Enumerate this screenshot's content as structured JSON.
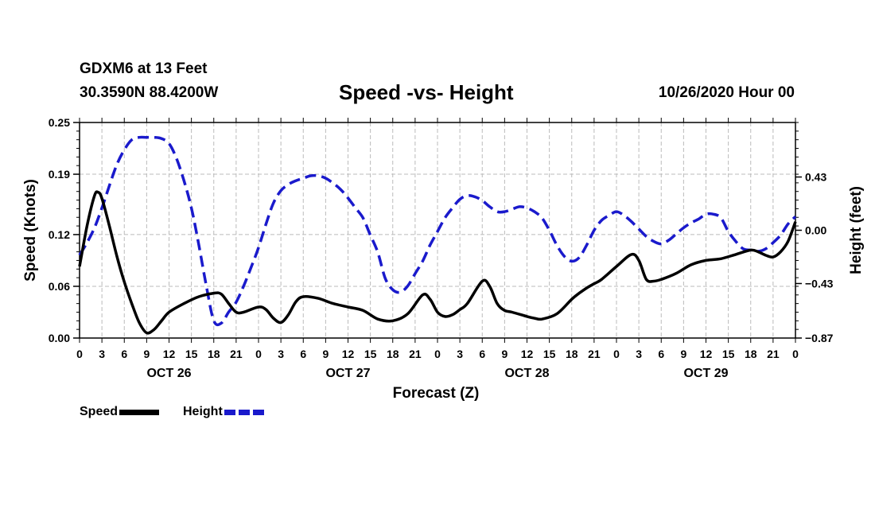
{
  "header": {
    "station": "GDXM6 at 13 Feet",
    "coords": "30.3590N 88.4200W",
    "title": "Speed -vs- Height",
    "datetime": "10/26/2020 Hour 00"
  },
  "legend": {
    "speed_label": "Speed",
    "height_label": "Height"
  },
  "colors": {
    "speed": "#000000",
    "height": "#1a1acc",
    "grid": "#bbbbbb"
  },
  "chart_data": {
    "type": "line",
    "title": "Speed -vs- Height",
    "xlabel": "Forecast (Z)",
    "ylabel": "Speed (Knots)",
    "y2label": "Height (feet)",
    "xlim": [
      0,
      96
    ],
    "ylim": [
      0,
      0.25
    ],
    "y2lim": [
      -0.87,
      0.87
    ],
    "x_ticks": [
      0,
      3,
      6,
      9,
      12,
      15,
      18,
      21,
      24,
      27,
      30,
      33,
      36,
      39,
      42,
      45,
      48,
      51,
      54,
      57,
      60,
      63,
      66,
      69,
      72,
      75,
      78,
      81,
      84,
      87,
      90,
      93,
      96
    ],
    "x_tick_labels": [
      "0",
      "3",
      "6",
      "9",
      "12",
      "15",
      "18",
      "21",
      "0",
      "3",
      "6",
      "9",
      "12",
      "15",
      "18",
      "21",
      "0",
      "3",
      "6",
      "9",
      "12",
      "15",
      "18",
      "21",
      "0",
      "3",
      "6",
      "9",
      "12",
      "15",
      "18",
      "21",
      "0"
    ],
    "day_labels": [
      {
        "x": 12,
        "label": "OCT 26"
      },
      {
        "x": 36,
        "label": "OCT 27"
      },
      {
        "x": 60,
        "label": "OCT 28"
      },
      {
        "x": 84,
        "label": "OCT 29"
      }
    ],
    "y_ticks": [
      0.0,
      0.06,
      0.12,
      0.19,
      0.25
    ],
    "y_tick_labels": [
      "0.00",
      "0.06",
      "0.12",
      "0.19",
      "0.25"
    ],
    "y2_ticks": [
      -0.87,
      -0.43,
      0.0,
      0.43
    ],
    "y2_tick_labels": [
      "−0.87",
      "−0.43",
      "0.00",
      "0.43"
    ],
    "series": [
      {
        "name": "Speed",
        "axis": "left",
        "style": "solid",
        "x": [
          0,
          1,
          2,
          2.5,
          3,
          4,
          5,
          6,
          7,
          8,
          9,
          10,
          11,
          12,
          14,
          16,
          18,
          19,
          20,
          21,
          22,
          24,
          25,
          26,
          27,
          28,
          29,
          30,
          32,
          34,
          36,
          38,
          40,
          42,
          44,
          46,
          47,
          48,
          49,
          50,
          51,
          52,
          54,
          55,
          56,
          57,
          58,
          60,
          61,
          62,
          64,
          66,
          67,
          68,
          69,
          70,
          72,
          74,
          75,
          76,
          77,
          78,
          80,
          82,
          84,
          86,
          88,
          90,
          91,
          92,
          93,
          94,
          95,
          96
        ],
        "values": [
          0.083,
          0.13,
          0.165,
          0.169,
          0.162,
          0.13,
          0.095,
          0.065,
          0.04,
          0.018,
          0.006,
          0.01,
          0.02,
          0.03,
          0.04,
          0.048,
          0.052,
          0.051,
          0.04,
          0.03,
          0.03,
          0.036,
          0.033,
          0.023,
          0.018,
          0.027,
          0.042,
          0.048,
          0.046,
          0.04,
          0.036,
          0.032,
          0.022,
          0.02,
          0.028,
          0.05,
          0.045,
          0.03,
          0.025,
          0.027,
          0.033,
          0.04,
          0.066,
          0.06,
          0.04,
          0.032,
          0.03,
          0.025,
          0.023,
          0.022,
          0.028,
          0.045,
          0.052,
          0.058,
          0.063,
          0.068,
          0.083,
          0.097,
          0.09,
          0.068,
          0.066,
          0.068,
          0.075,
          0.085,
          0.09,
          0.092,
          0.097,
          0.102,
          0.1,
          0.096,
          0.094,
          0.1,
          0.112,
          0.135
        ]
      },
      {
        "name": "Height",
        "axis": "right",
        "style": "dashed",
        "x": [
          0,
          1,
          2,
          3,
          4,
          5,
          6,
          7,
          8,
          9,
          10,
          11,
          12,
          13,
          14,
          15,
          16,
          17,
          18,
          19,
          20,
          21,
          22,
          23,
          24,
          25,
          26,
          27,
          28,
          29,
          30,
          31,
          32,
          33,
          34,
          35,
          36,
          37,
          38,
          39,
          40,
          41,
          42,
          43,
          44,
          45,
          46,
          47,
          48,
          49,
          50,
          51,
          52,
          53,
          54,
          55,
          56,
          57,
          58,
          59,
          60,
          61,
          62,
          63,
          64,
          65,
          66,
          67,
          68,
          69,
          70,
          71,
          72,
          73,
          74,
          75,
          76,
          77,
          78,
          79,
          80,
          81,
          82,
          83,
          84,
          85,
          86,
          87,
          88,
          89,
          90,
          91,
          92,
          93,
          94,
          95,
          96
        ],
        "values": [
          -0.2,
          -0.1,
          0.02,
          0.18,
          0.36,
          0.53,
          0.65,
          0.73,
          0.75,
          0.75,
          0.75,
          0.74,
          0.7,
          0.58,
          0.4,
          0.18,
          -0.12,
          -0.45,
          -0.73,
          -0.75,
          -0.66,
          -0.58,
          -0.45,
          -0.3,
          -0.14,
          0.05,
          0.22,
          0.32,
          0.37,
          0.4,
          0.42,
          0.44,
          0.44,
          0.42,
          0.38,
          0.33,
          0.26,
          0.18,
          0.1,
          -0.04,
          -0.18,
          -0.39,
          -0.48,
          -0.5,
          -0.45,
          -0.35,
          -0.25,
          -0.12,
          -0.01,
          0.1,
          0.18,
          0.25,
          0.28,
          0.27,
          0.24,
          0.19,
          0.15,
          0.15,
          0.17,
          0.19,
          0.18,
          0.15,
          0.1,
          0.0,
          -0.12,
          -0.21,
          -0.25,
          -0.22,
          -0.12,
          0.0,
          0.08,
          0.12,
          0.15,
          0.12,
          0.07,
          0.01,
          -0.05,
          -0.09,
          -0.11,
          -0.08,
          -0.03,
          0.02,
          0.06,
          0.09,
          0.13,
          0.13,
          0.1,
          -0.01,
          -0.09,
          -0.15,
          -0.16,
          -0.17,
          -0.15,
          -0.1,
          -0.04,
          0.05,
          0.11
        ]
      }
    ]
  }
}
